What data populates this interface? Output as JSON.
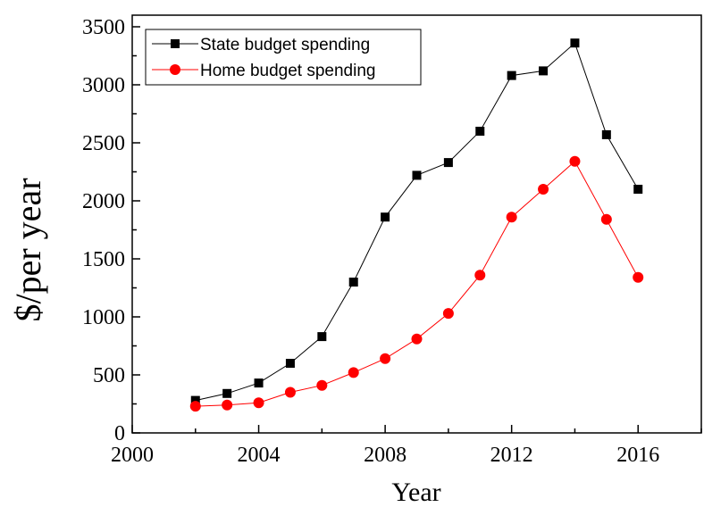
{
  "chart_data": {
    "type": "line",
    "xlabel": "Year",
    "ylabel": "$/per year",
    "xlim": [
      2000,
      2018
    ],
    "ylim": [
      0,
      3600
    ],
    "xticks": [
      2000,
      2004,
      2008,
      2012,
      2016
    ],
    "yticks": [
      0,
      500,
      1000,
      1500,
      2000,
      2500,
      3000,
      3500
    ],
    "legend_position": "top-left",
    "x": [
      2002,
      2003,
      2004,
      2005,
      2006,
      2007,
      2008,
      2009,
      2010,
      2011,
      2012,
      2013,
      2014,
      2015,
      2016
    ],
    "series": [
      {
        "name": "State budget spending",
        "color": "#000000",
        "marker": "square",
        "values": [
          280,
          340,
          430,
          600,
          830,
          1300,
          1860,
          2220,
          2330,
          2600,
          3080,
          3120,
          3360,
          2570,
          2100
        ]
      },
      {
        "name": "Home budget spending",
        "color": "#ff0000",
        "marker": "circle",
        "values": [
          230,
          240,
          260,
          350,
          410,
          520,
          640,
          810,
          1030,
          1360,
          1860,
          2100,
          2340,
          1840,
          1340
        ]
      }
    ]
  }
}
